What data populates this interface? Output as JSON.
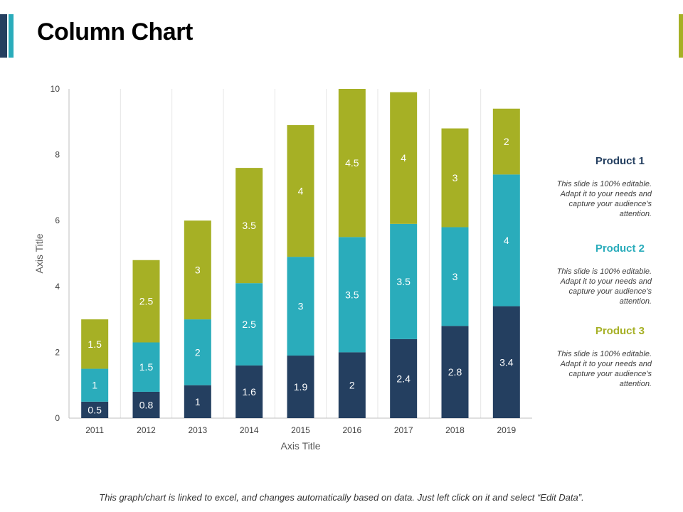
{
  "title": "Column Chart",
  "chart_data": {
    "type": "bar",
    "stacked": true,
    "categories": [
      "2011",
      "2012",
      "2013",
      "2014",
      "2015",
      "2016",
      "2017",
      "2018",
      "2019"
    ],
    "series": [
      {
        "name": "Product 1",
        "color": "#243f60",
        "values": [
          0.5,
          0.8,
          1,
          1.6,
          1.9,
          2,
          2.4,
          2.8,
          3.4
        ]
      },
      {
        "name": "Product 2",
        "color": "#2aacbb",
        "values": [
          1,
          1.5,
          2,
          2.5,
          3,
          3.5,
          3.5,
          3,
          4
        ]
      },
      {
        "name": "Product 3",
        "color": "#a6b025",
        "values": [
          1.5,
          2.5,
          3,
          3.5,
          4,
          4.5,
          4,
          3,
          2
        ]
      }
    ],
    "xlabel": "Axis Title",
    "ylabel": "Axis Title",
    "ylim": [
      0,
      10
    ],
    "yticks": [
      0,
      2,
      4,
      6,
      8,
      10
    ],
    "grid": "vertical"
  },
  "legend": [
    {
      "label": "Product 1",
      "color": "#243f60",
      "text": "This slide is 100% editable. Adapt it to your needs and capture your audience's attention."
    },
    {
      "label": "Product 2",
      "color": "#2aacbb",
      "text": "This slide is 100% editable. Adapt it to your needs and capture your audience's attention."
    },
    {
      "label": "Product 3",
      "color": "#a6b025",
      "text": "This slide is 100% editable. Adapt it to your needs and capture your audience's attention."
    }
  ],
  "footer": "This graph/chart is linked to excel, and changes automatically based on data. Just left click on it and select “Edit Data”."
}
